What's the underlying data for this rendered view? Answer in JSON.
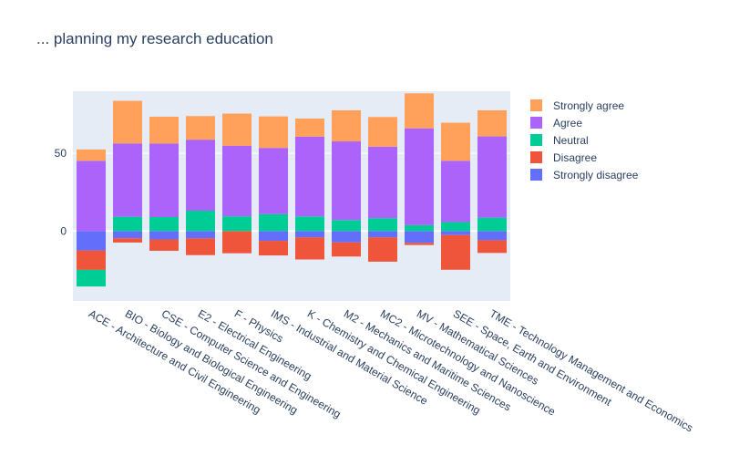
{
  "title": "... planning my research education",
  "chart_data": {
    "type": "bar",
    "barmode": "relative",
    "title": "... planning my research education",
    "xlabel": "",
    "ylabel": "",
    "ylim": [
      -45,
      90
    ],
    "yticks": [
      0,
      50
    ],
    "grid": true,
    "legend_position": "top-right",
    "categories": [
      "ACE - Architecture and Civil Engineering",
      "BIO - Biology and Biological Engineering",
      "CSE - Computer Science and Engineering",
      "E2 - Electrical Engineering",
      "F - Physics",
      "IMS - Industrial and Material Science",
      "K - Chemistry and Chemical Engineering",
      "M2 - Mechanics and Maritime Sciences",
      "MC2 - Microtechnology and Nanoscience",
      "MV - Mathematical Sciences",
      "SEE - Space, Earth and Environment",
      "TME - Technology Management and Economics"
    ],
    "series": [
      {
        "name": "Strongly disagree",
        "color": "#636efa",
        "values": [
          -12.5,
          -4.6,
          -5.4,
          -4.7,
          0,
          -6.3,
          -4.1,
          -7.3,
          -4.1,
          -7.6,
          -2.6,
          -5.9
        ]
      },
      {
        "name": "Disagree",
        "color": "#ef553b",
        "values": [
          -12.5,
          -2.8,
          -7.3,
          -10.8,
          -14.3,
          -9.4,
          -14.2,
          -9.1,
          -15.6,
          -1.4,
          -22.3,
          -8.2
        ]
      },
      {
        "name": "Neutral",
        "color": "#00cc96",
        "values": [
          -10.7,
          9.2,
          9.0,
          13.1,
          9.5,
          10.9,
          9.4,
          7.1,
          8.3,
          3.8,
          5.8,
          8.6
        ]
      },
      {
        "name": "Agree",
        "color": "#ab63fa",
        "values": [
          45.2,
          47.2,
          47.3,
          45.7,
          45.4,
          42.6,
          51.3,
          50.6,
          46.0,
          62.3,
          39.4,
          52.3
        ]
      },
      {
        "name": "Strongly agree",
        "color": "#ffa15a",
        "values": [
          7.3,
          27.4,
          17.3,
          15.2,
          20.7,
          20.3,
          11.7,
          20.0,
          19.1,
          22.5,
          24.5,
          16.8
        ]
      }
    ],
    "legend_order": [
      "Strongly agree",
      "Agree",
      "Neutral",
      "Disagree",
      "Strongly disagree"
    ]
  }
}
